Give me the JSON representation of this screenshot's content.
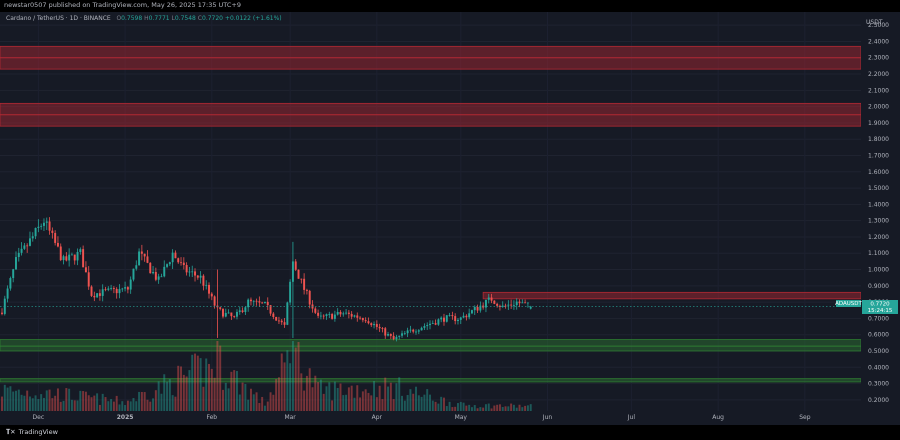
{
  "header": {
    "published_text": "newstar0507 published on TradingView.com, May 26, 2025 17:35 UTC+9"
  },
  "legend": {
    "symbol": "Cardano / TetherUS · 1D · BINANCE",
    "open_label": "O",
    "open": "0.7598",
    "high_label": "H",
    "high": "0.7771",
    "low_label": "L",
    "low": "0.7548",
    "close_label": "C",
    "close": "0.7720",
    "change": "+0.0122 (+1.61%)"
  },
  "price_axis": {
    "currency": "USDT",
    "ticks": [
      "2.5000",
      "2.4000",
      "2.3000",
      "2.2000",
      "2.1000",
      "2.0000",
      "1.9000",
      "1.8000",
      "1.7000",
      "1.6000",
      "1.5000",
      "1.4000",
      "1.3000",
      "1.2000",
      "1.1000",
      "1.0000",
      "0.9000",
      "0.8000",
      "0.7000",
      "0.6000",
      "0.5000",
      "0.4000",
      "0.3000",
      "0.2000"
    ]
  },
  "price_tag": {
    "symbol": "ADAUSDT",
    "price": "0.7720",
    "countdown": "15:24:15"
  },
  "time_axis": {
    "labels": [
      "Dec",
      "2025",
      "Feb",
      "Mar",
      "Apr",
      "May",
      "Jun",
      "Jul",
      "Aug",
      "Sep"
    ]
  },
  "footer": {
    "logo_text": "TradingView"
  },
  "colors": {
    "up": "#26a69a",
    "down": "#ef5350",
    "resistance_zone": "#b22833",
    "support_zone": "#2e7d32",
    "background": "#161a25"
  },
  "chart_data": {
    "type": "candlestick",
    "symbol": "ADAUSDT",
    "interval": "1D",
    "exchange": "BINANCE",
    "ylim": [
      0.15,
      2.55
    ],
    "xrange": [
      "2024-11-18",
      "2025-09-20"
    ],
    "last": {
      "open": 0.7598,
      "high": 0.7771,
      "low": 0.7548,
      "close": 0.772
    },
    "zones": [
      {
        "kind": "resistance",
        "from": 2.23,
        "to": 2.37,
        "midline": 2.3
      },
      {
        "kind": "resistance",
        "from": 1.88,
        "to": 2.02,
        "midline": 1.95
      },
      {
        "kind": "resistance",
        "from": 0.82,
        "to": 0.86
      },
      {
        "kind": "support",
        "from": 0.5,
        "to": 0.57,
        "midline": 0.53
      },
      {
        "kind": "support",
        "from": 0.31,
        "to": 0.33
      }
    ],
    "price_path": [
      {
        "date": "2024-11-18",
        "close": 0.75
      },
      {
        "date": "2024-11-23",
        "close": 1.05
      },
      {
        "date": "2024-12-03",
        "close": 1.3
      },
      {
        "date": "2024-12-10",
        "close": 1.05
      },
      {
        "date": "2024-12-16",
        "close": 1.1
      },
      {
        "date": "2024-12-20",
        "close": 0.85
      },
      {
        "date": "2025-01-02",
        "close": 0.88
      },
      {
        "date": "2025-01-06",
        "close": 1.1
      },
      {
        "date": "2025-01-13",
        "close": 0.93
      },
      {
        "date": "2025-01-18",
        "close": 1.1
      },
      {
        "date": "2025-01-22",
        "close": 1.0
      },
      {
        "date": "2025-01-28",
        "close": 0.95
      },
      {
        "date": "2025-02-03",
        "close": 0.75
      },
      {
        "date": "2025-02-09",
        "close": 0.7
      },
      {
        "date": "2025-02-14",
        "close": 0.8
      },
      {
        "date": "2025-02-20",
        "close": 0.78
      },
      {
        "date": "2025-02-27",
        "close": 0.65
      },
      {
        "date": "2025-03-02",
        "close": 1.05
      },
      {
        "date": "2025-03-06",
        "close": 0.88
      },
      {
        "date": "2025-03-11",
        "close": 0.7
      },
      {
        "date": "2025-03-20",
        "close": 0.73
      },
      {
        "date": "2025-03-28",
        "close": 0.7
      },
      {
        "date": "2025-04-07",
        "close": 0.57
      },
      {
        "date": "2025-04-14",
        "close": 0.63
      },
      {
        "date": "2025-04-25",
        "close": 0.7
      },
      {
        "date": "2025-05-01",
        "close": 0.7
      },
      {
        "date": "2025-05-12",
        "close": 0.82
      },
      {
        "date": "2025-05-16",
        "close": 0.77
      },
      {
        "date": "2025-05-21",
        "close": 0.8
      },
      {
        "date": "2025-05-26",
        "close": 0.772
      }
    ],
    "volume_path": [
      {
        "date": "2024-11-18",
        "volume": 0.35
      },
      {
        "date": "2024-12-05",
        "volume": 0.3
      },
      {
        "date": "2025-01-01",
        "volume": 0.15
      },
      {
        "date": "2025-02-03",
        "volume": 0.8
      },
      {
        "date": "2025-02-20",
        "volume": 0.12
      },
      {
        "date": "2025-03-02",
        "volume": 1.0
      },
      {
        "date": "2025-03-11",
        "volume": 0.35
      },
      {
        "date": "2025-04-07",
        "volume": 0.4
      },
      {
        "date": "2025-05-01",
        "volume": 0.1
      },
      {
        "date": "2025-05-26",
        "volume": 0.08
      }
    ]
  }
}
